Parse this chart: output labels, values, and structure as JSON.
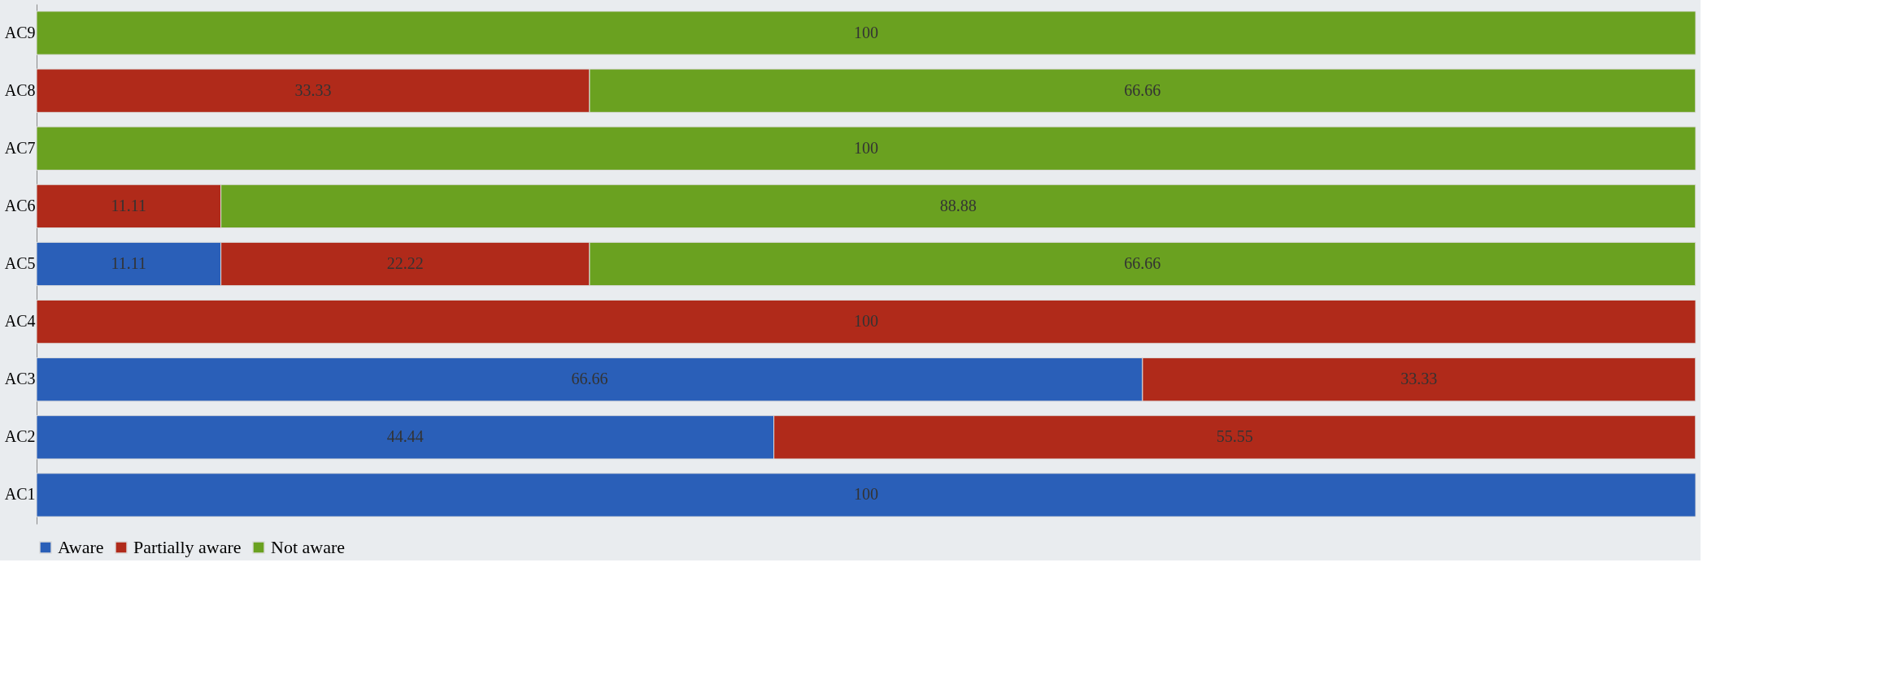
{
  "chart_data": {
    "type": "bar",
    "orientation": "horizontal",
    "stacked": true,
    "data_labels": true,
    "legend": "bottom",
    "categories": [
      "AC9",
      "AC8",
      "AC7",
      "AC6",
      "AC5",
      "AC4",
      "AC3",
      "AC2",
      "AC1"
    ],
    "series": [
      {
        "name": "Aware",
        "color": "#2a5fb8",
        "values": [
          null,
          null,
          null,
          null,
          11.11,
          null,
          66.66,
          44.44,
          100
        ]
      },
      {
        "name": "Partially aware",
        "color": "#b02a1a",
        "values": [
          null,
          33.33,
          null,
          11.11,
          22.22,
          100,
          33.33,
          55.55,
          null
        ]
      },
      {
        "name": "Not aware",
        "color": "#6aa120",
        "values": [
          100,
          66.66,
          100,
          88.88,
          66.66,
          null,
          null,
          null,
          null
        ]
      }
    ]
  }
}
